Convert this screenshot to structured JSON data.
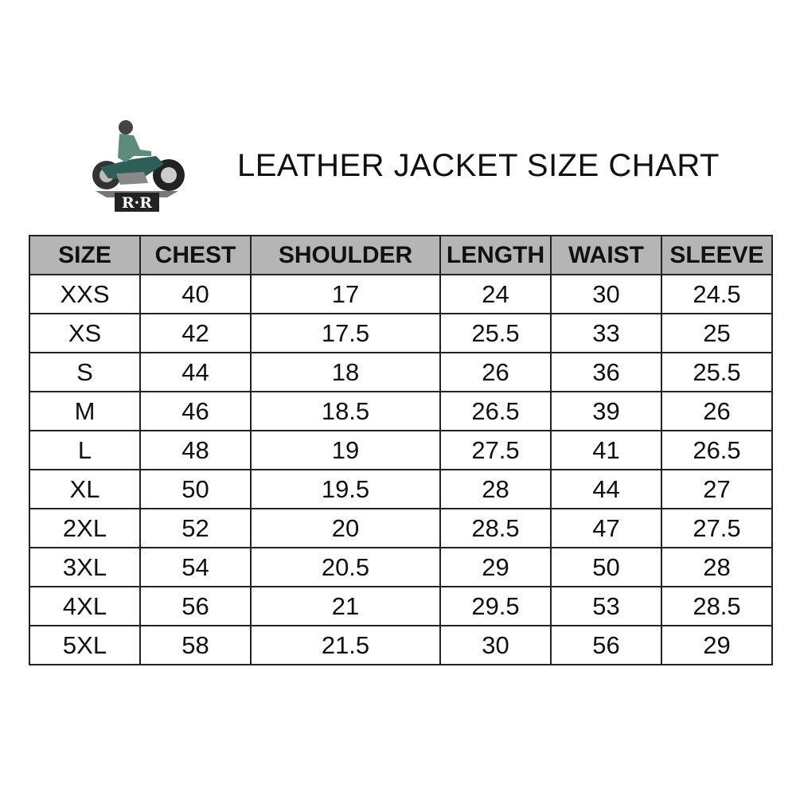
{
  "logo": {
    "text": "R R",
    "icon": "motorcycle-rider-logo"
  },
  "title": "LEATHER JACKET SIZE CHART",
  "table": {
    "headers": [
      "SIZE",
      "CHEST",
      "SHOULDER",
      "LENGTH",
      "WAIST",
      "SLEEVE"
    ],
    "rows": [
      [
        "XXS",
        "40",
        "17",
        "24",
        "30",
        "24.5"
      ],
      [
        "XS",
        "42",
        "17.5",
        "25.5",
        "33",
        "25"
      ],
      [
        "S",
        "44",
        "18",
        "26",
        "36",
        "25.5"
      ],
      [
        "M",
        "46",
        "18.5",
        "26.5",
        "39",
        "26"
      ],
      [
        "L",
        "48",
        "19",
        "27.5",
        "41",
        "26.5"
      ],
      [
        "XL",
        "50",
        "19.5",
        "28",
        "44",
        "27"
      ],
      [
        "2XL",
        "52",
        "20",
        "28.5",
        "47",
        "27.5"
      ],
      [
        "3XL",
        "54",
        "20.5",
        "29",
        "50",
        "28"
      ],
      [
        "4XL",
        "56",
        "21",
        "29.5",
        "53",
        "28.5"
      ],
      [
        "5XL",
        "58",
        "21.5",
        "30",
        "56",
        "29"
      ]
    ]
  },
  "colors": {
    "header_bg": "#b5b5b5",
    "border": "#222222"
  }
}
